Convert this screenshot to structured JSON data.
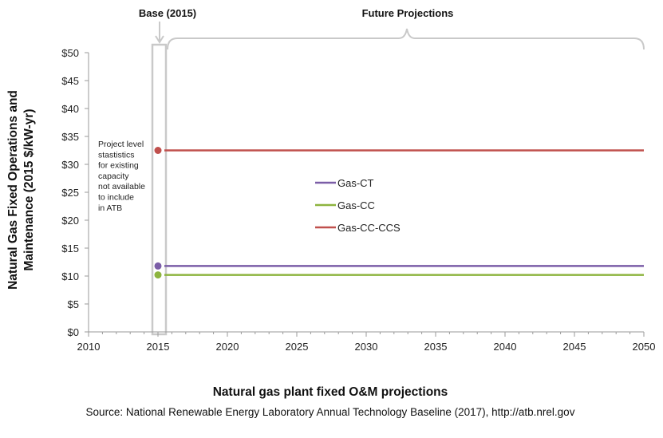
{
  "chart_data": {
    "type": "line",
    "title": "Natural gas plant fixed O&M projections",
    "ylabel_lines": [
      "Natural Gas Fixed Operations and",
      "Maintenance (2015 $/kW-yr)"
    ],
    "xlabel": "",
    "xlim": [
      2010,
      2050
    ],
    "ylim": [
      0,
      50
    ],
    "x_ticks": [
      "2010",
      "2015",
      "2020",
      "2025",
      "2030",
      "2035",
      "2040",
      "2045",
      "2050"
    ],
    "y_ticks": [
      "$0",
      "$5",
      "$10",
      "$15",
      "$20",
      "$25",
      "$30",
      "$35",
      "$40",
      "$45",
      "$50"
    ],
    "grid": false,
    "legend_position": "center-left",
    "series": [
      {
        "name": "Gas-CT",
        "color": "#7b5ea7",
        "base": {
          "x": 2015,
          "y": 11.8
        },
        "x": [
          2015,
          2050
        ],
        "values": [
          11.8,
          11.8
        ]
      },
      {
        "name": "Gas-CC",
        "color": "#8db43f",
        "base": {
          "x": 2015,
          "y": 10.2
        },
        "x": [
          2015,
          2050
        ],
        "values": [
          10.2,
          10.2
        ]
      },
      {
        "name": "Gas-CC-CCS",
        "color": "#c0504d",
        "base": {
          "x": 2015,
          "y": 32.5
        },
        "x": [
          2015,
          2050
        ],
        "values": [
          32.5,
          32.5
        ]
      }
    ],
    "annotations": {
      "base_label": "Base (2015)",
      "future_label": "Future Projections",
      "note_lines": [
        "Project level",
        "stastistics",
        "for existing",
        "capacity",
        "not available",
        "to include",
        "in ATB"
      ]
    },
    "source": "Source:  National Renewable Energy Laboratory Annual Technology Baseline (2017), http://atb.nrel.gov"
  }
}
